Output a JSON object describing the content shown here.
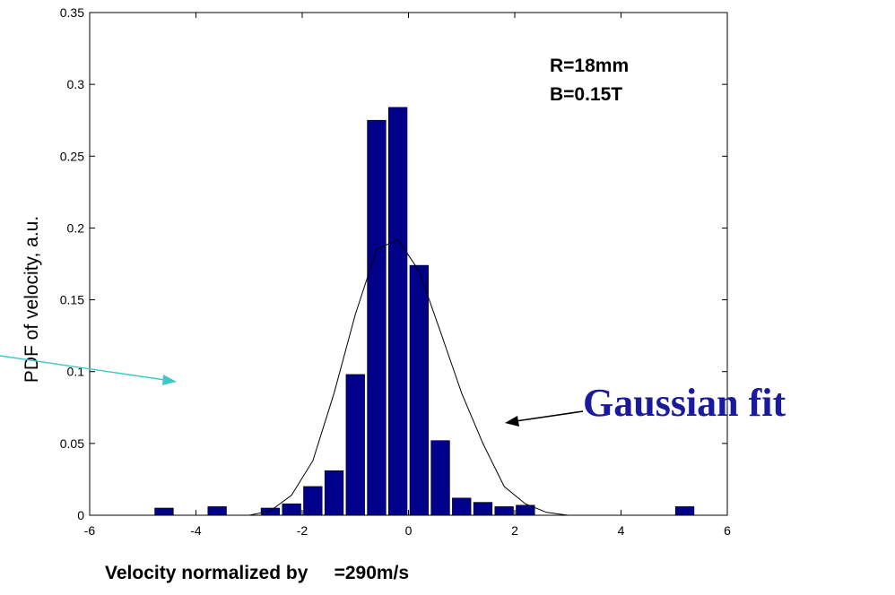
{
  "chart_data": {
    "type": "bar",
    "xlabel": "Velocity normalized by     =290m/s",
    "ylabel": "PDF of velocity, a.u.",
    "xlim": [
      -6,
      6
    ],
    "ylim": [
      0,
      0.35
    ],
    "xticks": [
      "-6",
      "-4",
      "-2",
      "0",
      "2",
      "4",
      "6"
    ],
    "yticks": [
      "0",
      "0.05",
      "0.1",
      "0.15",
      "0.2",
      "0.25",
      "0.3",
      "0.35"
    ],
    "bar_color": "#00008b",
    "bars": {
      "x": [
        -4.6,
        -3.6,
        -2.6,
        -2.2,
        -1.8,
        -1.4,
        -1.0,
        -0.6,
        -0.2,
        0.2,
        0.6,
        1.0,
        1.4,
        1.8,
        2.2,
        2.6,
        3.0,
        5.2
      ],
      "values": [
        0.005,
        0.006,
        0.005,
        0.008,
        0.02,
        0.031,
        0.098,
        0.275,
        0.284,
        0.174,
        0.052,
        0.012,
        0.009,
        0.006,
        0.007,
        0.0,
        0.0,
        0.006
      ]
    },
    "gaussian_fit": {
      "x": [
        -3.4,
        -3.0,
        -2.6,
        -2.2,
        -1.8,
        -1.4,
        -1.0,
        -0.6,
        -0.2,
        0.2,
        0.6,
        1.0,
        1.4,
        1.8,
        2.2,
        2.6,
        3.0
      ],
      "y": [
        0.0,
        0.0,
        0.003,
        0.014,
        0.038,
        0.085,
        0.14,
        0.185,
        0.192,
        0.17,
        0.128,
        0.085,
        0.05,
        0.02,
        0.008,
        0.002,
        0.0
      ]
    },
    "annotations": {
      "params_line1": "R=18mm",
      "params_line2": "B=0.15T",
      "fit_label": "Gaussian fit"
    },
    "colors": {
      "fit_label": "#1a1a9e",
      "cyan_arrow": "#40c8c8"
    }
  }
}
